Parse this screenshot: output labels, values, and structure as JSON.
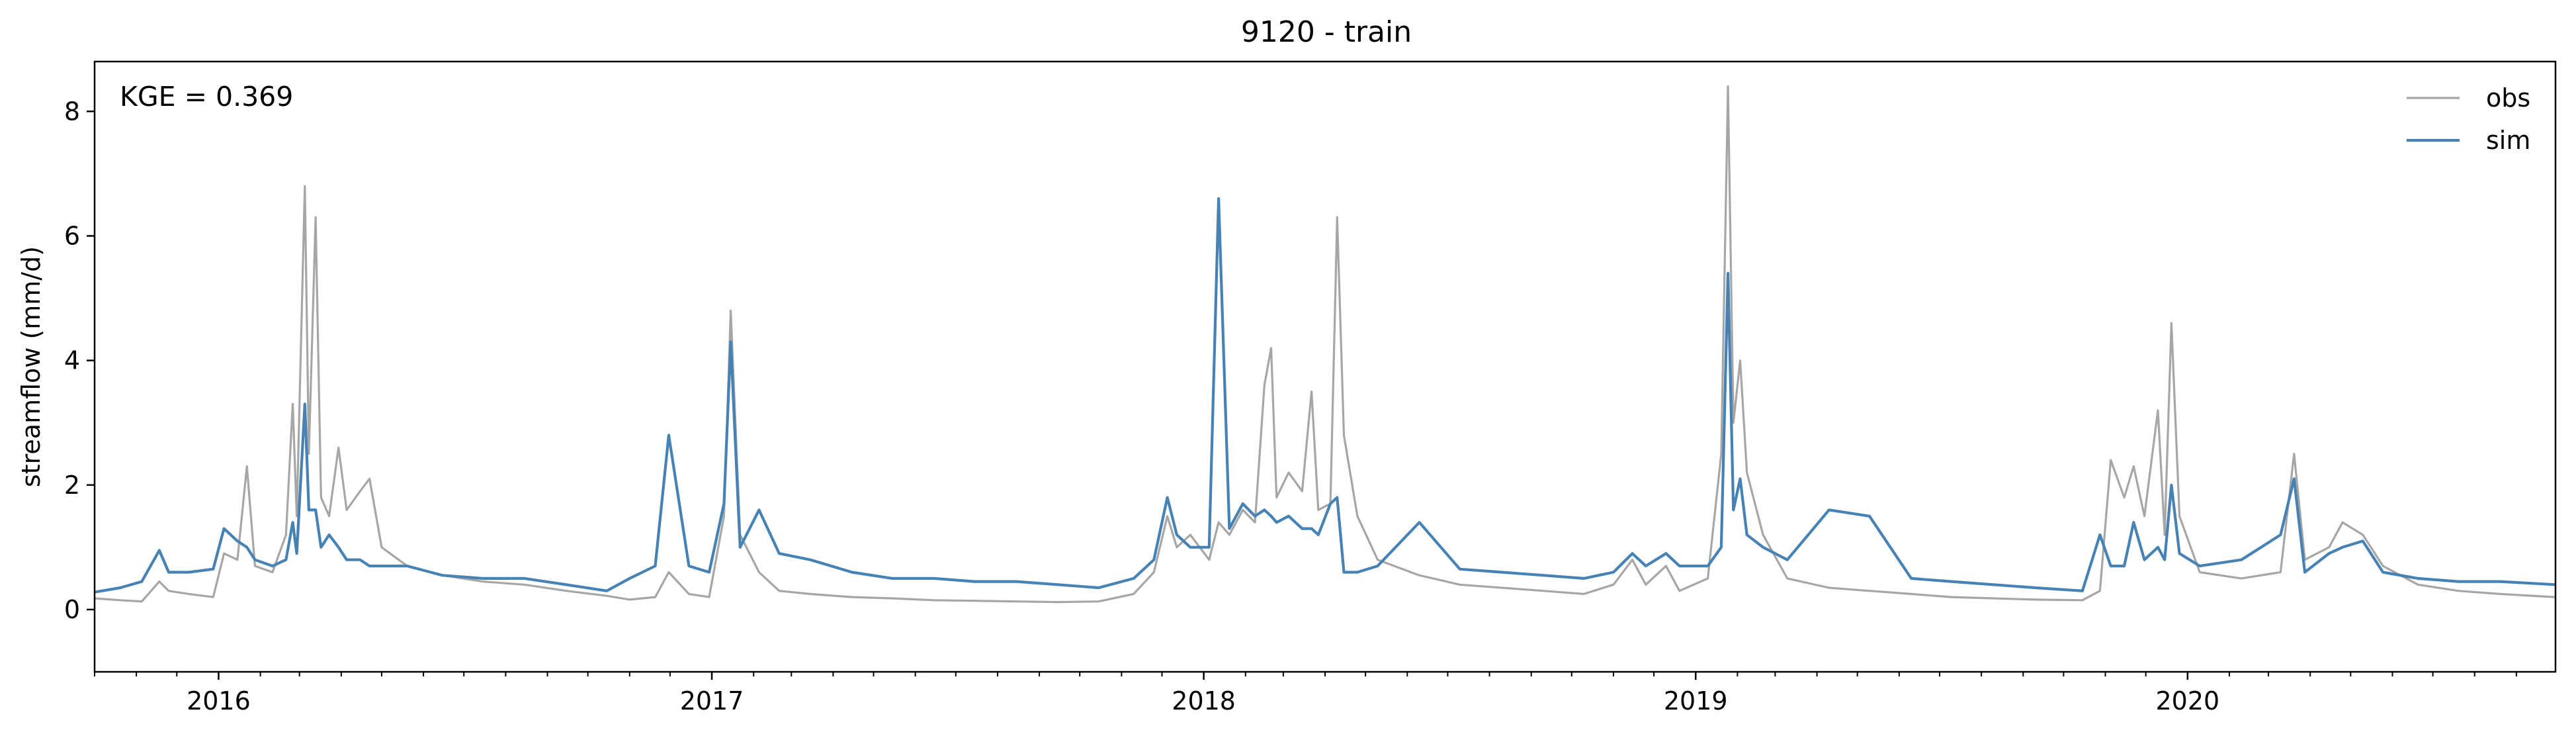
{
  "chart_data": {
    "type": "line",
    "title": "9120 - train",
    "xlabel": "",
    "ylabel": "streamflow (mm/d)",
    "annotation": "KGE = 0.369",
    "x_range": [
      "2015-10-01",
      "2020-09-30"
    ],
    "ylim": [
      -1.0,
      8.8
    ],
    "y_ticks": [
      0,
      2,
      4,
      6,
      8
    ],
    "x_ticks": [
      "2016-01-01",
      "2017-01-01",
      "2018-01-01",
      "2019-01-01",
      "2020-01-01"
    ],
    "x_tick_labels": [
      "2016",
      "2017",
      "2018",
      "2019",
      "2020"
    ],
    "grid": false,
    "legend": {
      "position": "top-right",
      "entries": [
        "obs",
        "sim"
      ]
    },
    "series": [
      {
        "name": "obs",
        "color": "#a6a6a6",
        "points": [
          [
            "2015-10-01",
            0.18
          ],
          [
            "2015-10-20",
            0.15
          ],
          [
            "2015-11-05",
            0.13
          ],
          [
            "2015-11-18",
            0.45
          ],
          [
            "2015-11-25",
            0.3
          ],
          [
            "2015-12-10",
            0.25
          ],
          [
            "2015-12-28",
            0.2
          ],
          [
            "2016-01-05",
            0.9
          ],
          [
            "2016-01-15",
            0.8
          ],
          [
            "2016-01-22",
            2.3
          ],
          [
            "2016-01-28",
            0.7
          ],
          [
            "2016-02-10",
            0.6
          ],
          [
            "2016-02-20",
            1.2
          ],
          [
            "2016-02-25",
            3.3
          ],
          [
            "2016-02-28",
            1.5
          ],
          [
            "2016-03-05",
            6.8
          ],
          [
            "2016-03-08",
            2.5
          ],
          [
            "2016-03-13",
            6.3
          ],
          [
            "2016-03-17",
            1.8
          ],
          [
            "2016-03-23",
            1.5
          ],
          [
            "2016-03-30",
            2.6
          ],
          [
            "2016-04-05",
            1.6
          ],
          [
            "2016-04-15",
            1.9
          ],
          [
            "2016-04-22",
            2.1
          ],
          [
            "2016-05-01",
            1.0
          ],
          [
            "2016-05-20",
            0.7
          ],
          [
            "2016-06-15",
            0.55
          ],
          [
            "2016-07-15",
            0.45
          ],
          [
            "2016-08-15",
            0.4
          ],
          [
            "2016-09-15",
            0.3
          ],
          [
            "2016-10-15",
            0.22
          ],
          [
            "2016-11-01",
            0.16
          ],
          [
            "2016-11-20",
            0.2
          ],
          [
            "2016-11-30",
            0.6
          ],
          [
            "2016-12-15",
            0.25
          ],
          [
            "2016-12-30",
            0.2
          ],
          [
            "2017-01-10",
            1.5
          ],
          [
            "2017-01-15",
            4.8
          ],
          [
            "2017-01-22",
            1.2
          ],
          [
            "2017-02-05",
            0.6
          ],
          [
            "2017-02-20",
            0.3
          ],
          [
            "2017-03-15",
            0.25
          ],
          [
            "2017-04-15",
            0.2
          ],
          [
            "2017-05-15",
            0.18
          ],
          [
            "2017-06-15",
            0.15
          ],
          [
            "2017-07-15",
            0.14
          ],
          [
            "2017-08-15",
            0.13
          ],
          [
            "2017-09-15",
            0.12
          ],
          [
            "2017-10-15",
            0.13
          ],
          [
            "2017-11-10",
            0.25
          ],
          [
            "2017-11-25",
            0.6
          ],
          [
            "2017-12-05",
            1.5
          ],
          [
            "2017-12-12",
            1.0
          ],
          [
            "2017-12-22",
            1.2
          ],
          [
            "2018-01-05",
            0.8
          ],
          [
            "2018-01-12",
            1.4
          ],
          [
            "2018-01-20",
            1.2
          ],
          [
            "2018-01-30",
            1.6
          ],
          [
            "2018-02-08",
            1.4
          ],
          [
            "2018-02-15",
            3.6
          ],
          [
            "2018-02-20",
            4.2
          ],
          [
            "2018-02-24",
            1.8
          ],
          [
            "2018-03-05",
            2.2
          ],
          [
            "2018-03-15",
            1.9
          ],
          [
            "2018-03-22",
            3.5
          ],
          [
            "2018-03-27",
            1.6
          ],
          [
            "2018-04-05",
            1.7
          ],
          [
            "2018-04-10",
            6.3
          ],
          [
            "2018-04-15",
            2.8
          ],
          [
            "2018-04-25",
            1.5
          ],
          [
            "2018-05-10",
            0.8
          ],
          [
            "2018-06-10",
            0.55
          ],
          [
            "2018-07-10",
            0.4
          ],
          [
            "2018-08-10",
            0.35
          ],
          [
            "2018-09-10",
            0.3
          ],
          [
            "2018-10-10",
            0.25
          ],
          [
            "2018-11-01",
            0.4
          ],
          [
            "2018-11-15",
            0.8
          ],
          [
            "2018-11-25",
            0.4
          ],
          [
            "2018-12-10",
            0.7
          ],
          [
            "2018-12-20",
            0.3
          ],
          [
            "2019-01-10",
            0.5
          ],
          [
            "2019-01-20",
            2.5
          ],
          [
            "2019-01-25",
            8.4
          ],
          [
            "2019-01-29",
            3.0
          ],
          [
            "2019-02-03",
            4.0
          ],
          [
            "2019-02-08",
            2.2
          ],
          [
            "2019-02-20",
            1.2
          ],
          [
            "2019-03-10",
            0.5
          ],
          [
            "2019-04-10",
            0.35
          ],
          [
            "2019-05-10",
            0.3
          ],
          [
            "2019-06-10",
            0.25
          ],
          [
            "2019-07-10",
            0.2
          ],
          [
            "2019-08-10",
            0.18
          ],
          [
            "2019-09-10",
            0.16
          ],
          [
            "2019-10-15",
            0.15
          ],
          [
            "2019-10-28",
            0.3
          ],
          [
            "2019-11-05",
            2.4
          ],
          [
            "2019-11-15",
            1.8
          ],
          [
            "2019-11-22",
            2.3
          ],
          [
            "2019-11-30",
            1.5
          ],
          [
            "2019-12-10",
            3.2
          ],
          [
            "2019-12-15",
            1.2
          ],
          [
            "2019-12-20",
            4.6
          ],
          [
            "2019-12-26",
            1.5
          ],
          [
            "2020-01-10",
            0.6
          ],
          [
            "2020-02-10",
            0.5
          ],
          [
            "2020-03-10",
            0.6
          ],
          [
            "2020-03-20",
            2.5
          ],
          [
            "2020-03-28",
            0.8
          ],
          [
            "2020-04-15",
            1.0
          ],
          [
            "2020-04-25",
            1.4
          ],
          [
            "2020-05-10",
            1.2
          ],
          [
            "2020-05-25",
            0.7
          ],
          [
            "2020-06-20",
            0.4
          ],
          [
            "2020-07-20",
            0.3
          ],
          [
            "2020-08-20",
            0.25
          ],
          [
            "2020-09-30",
            0.2
          ]
        ]
      },
      {
        "name": "sim",
        "color": "#4682b4",
        "points": [
          [
            "2015-10-01",
            0.28
          ],
          [
            "2015-10-20",
            0.35
          ],
          [
            "2015-11-05",
            0.45
          ],
          [
            "2015-11-18",
            0.95
          ],
          [
            "2015-11-25",
            0.6
          ],
          [
            "2015-12-10",
            0.6
          ],
          [
            "2015-12-28",
            0.65
          ],
          [
            "2016-01-05",
            1.3
          ],
          [
            "2016-01-15",
            1.1
          ],
          [
            "2016-01-22",
            1.0
          ],
          [
            "2016-01-28",
            0.8
          ],
          [
            "2016-02-10",
            0.7
          ],
          [
            "2016-02-20",
            0.8
          ],
          [
            "2016-02-25",
            1.4
          ],
          [
            "2016-02-28",
            0.9
          ],
          [
            "2016-03-05",
            3.3
          ],
          [
            "2016-03-08",
            1.6
          ],
          [
            "2016-03-13",
            1.6
          ],
          [
            "2016-03-17",
            1.0
          ],
          [
            "2016-03-23",
            1.2
          ],
          [
            "2016-03-30",
            1.0
          ],
          [
            "2016-04-05",
            0.8
          ],
          [
            "2016-04-15",
            0.8
          ],
          [
            "2016-04-22",
            0.7
          ],
          [
            "2016-05-01",
            0.7
          ],
          [
            "2016-05-20",
            0.7
          ],
          [
            "2016-06-15",
            0.55
          ],
          [
            "2016-07-15",
            0.5
          ],
          [
            "2016-08-15",
            0.5
          ],
          [
            "2016-09-15",
            0.4
          ],
          [
            "2016-10-15",
            0.3
          ],
          [
            "2016-11-01",
            0.5
          ],
          [
            "2016-11-20",
            0.7
          ],
          [
            "2016-11-30",
            2.8
          ],
          [
            "2016-12-15",
            0.7
          ],
          [
            "2016-12-30",
            0.6
          ],
          [
            "2017-01-10",
            1.7
          ],
          [
            "2017-01-15",
            4.3
          ],
          [
            "2017-01-22",
            1.0
          ],
          [
            "2017-02-05",
            1.6
          ],
          [
            "2017-02-20",
            0.9
          ],
          [
            "2017-03-15",
            0.8
          ],
          [
            "2017-04-15",
            0.6
          ],
          [
            "2017-05-15",
            0.5
          ],
          [
            "2017-06-15",
            0.5
          ],
          [
            "2017-07-15",
            0.45
          ],
          [
            "2017-08-15",
            0.45
          ],
          [
            "2017-09-15",
            0.4
          ],
          [
            "2017-10-15",
            0.35
          ],
          [
            "2017-11-10",
            0.5
          ],
          [
            "2017-11-25",
            0.8
          ],
          [
            "2017-12-05",
            1.8
          ],
          [
            "2017-12-12",
            1.2
          ],
          [
            "2017-12-22",
            1.0
          ],
          [
            "2018-01-05",
            1.0
          ],
          [
            "2018-01-12",
            6.6
          ],
          [
            "2018-01-20",
            1.3
          ],
          [
            "2018-01-30",
            1.7
          ],
          [
            "2018-02-08",
            1.5
          ],
          [
            "2018-02-15",
            1.6
          ],
          [
            "2018-02-20",
            1.5
          ],
          [
            "2018-02-24",
            1.4
          ],
          [
            "2018-03-05",
            1.5
          ],
          [
            "2018-03-15",
            1.3
          ],
          [
            "2018-03-22",
            1.3
          ],
          [
            "2018-03-27",
            1.2
          ],
          [
            "2018-04-05",
            1.7
          ],
          [
            "2018-04-10",
            1.8
          ],
          [
            "2018-04-15",
            0.6
          ],
          [
            "2018-04-25",
            0.6
          ],
          [
            "2018-05-10",
            0.7
          ],
          [
            "2018-06-10",
            1.4
          ],
          [
            "2018-07-10",
            0.65
          ],
          [
            "2018-08-10",
            0.6
          ],
          [
            "2018-09-10",
            0.55
          ],
          [
            "2018-10-10",
            0.5
          ],
          [
            "2018-11-01",
            0.6
          ],
          [
            "2018-11-15",
            0.9
          ],
          [
            "2018-11-25",
            0.7
          ],
          [
            "2018-12-10",
            0.9
          ],
          [
            "2018-12-20",
            0.7
          ],
          [
            "2019-01-10",
            0.7
          ],
          [
            "2019-01-20",
            1.0
          ],
          [
            "2019-01-25",
            5.4
          ],
          [
            "2019-01-29",
            1.6
          ],
          [
            "2019-02-03",
            2.1
          ],
          [
            "2019-02-08",
            1.2
          ],
          [
            "2019-02-20",
            1.0
          ],
          [
            "2019-03-10",
            0.8
          ],
          [
            "2019-04-10",
            1.6
          ],
          [
            "2019-05-10",
            1.5
          ],
          [
            "2019-06-10",
            0.5
          ],
          [
            "2019-07-10",
            0.45
          ],
          [
            "2019-08-10",
            0.4
          ],
          [
            "2019-09-10",
            0.35
          ],
          [
            "2019-10-15",
            0.3
          ],
          [
            "2019-10-28",
            1.2
          ],
          [
            "2019-11-05",
            0.7
          ],
          [
            "2019-11-15",
            0.7
          ],
          [
            "2019-11-22",
            1.4
          ],
          [
            "2019-11-30",
            0.8
          ],
          [
            "2019-12-10",
            1.0
          ],
          [
            "2019-12-15",
            0.8
          ],
          [
            "2019-12-20",
            2.0
          ],
          [
            "2019-12-26",
            0.9
          ],
          [
            "2020-01-10",
            0.7
          ],
          [
            "2020-02-10",
            0.8
          ],
          [
            "2020-03-10",
            1.2
          ],
          [
            "2020-03-20",
            2.1
          ],
          [
            "2020-03-28",
            0.6
          ],
          [
            "2020-04-15",
            0.9
          ],
          [
            "2020-04-25",
            1.0
          ],
          [
            "2020-05-10",
            1.1
          ],
          [
            "2020-05-25",
            0.6
          ],
          [
            "2020-06-20",
            0.5
          ],
          [
            "2020-07-20",
            0.45
          ],
          [
            "2020-08-20",
            0.45
          ],
          [
            "2020-09-30",
            0.4
          ]
        ]
      }
    ]
  }
}
